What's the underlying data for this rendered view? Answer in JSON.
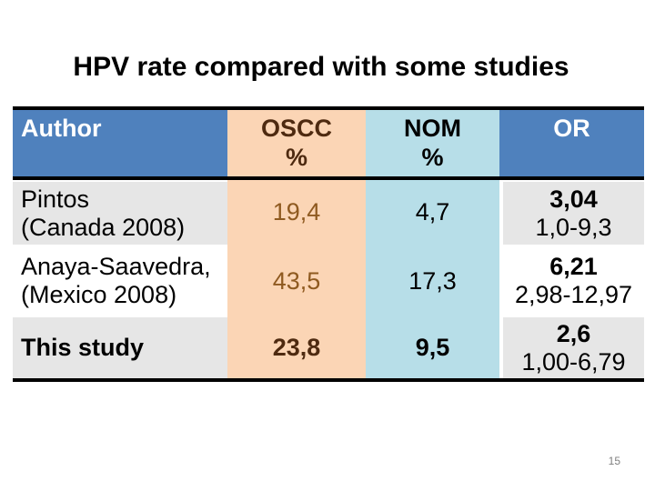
{
  "slide": {
    "title": "HPV rate compared with some studies",
    "page_number": "15"
  },
  "table": {
    "header": {
      "author": "Author",
      "oscc_line1": "OSCC",
      "oscc_line2": "%",
      "nom_line1": "NOM",
      "nom_line2": "%",
      "or": "OR"
    },
    "rows": [
      {
        "author_line1": "Pintos",
        "author_line2": "(Canada 2008)",
        "oscc": "19,4",
        "nom": "4,7",
        "or_value": "3,04",
        "or_range": "1,0-9,3"
      },
      {
        "author_line1": "Anaya-Saavedra,",
        "author_line2": "(Mexico 2008)",
        "oscc": "43,5",
        "nom": "17,3",
        "or_value": "6,21",
        "or_range": "2,98-12,97"
      },
      {
        "author_line1": "This study",
        "author_line2": "",
        "oscc": "23,8",
        "nom": "9,5",
        "or_value": "2,6",
        "or_range": "1,00-6,79"
      }
    ]
  },
  "colors": {
    "header_blue": "#4f81bd",
    "oscc_column": "#fbd5b5",
    "nom_column": "#b7dee8",
    "row_shade": "#e6e6e6",
    "oscc_text_regular": "#8f5a20",
    "oscc_text_dark": "#4e2a10",
    "border_black": "#000000",
    "page_number_gray": "#808080"
  }
}
